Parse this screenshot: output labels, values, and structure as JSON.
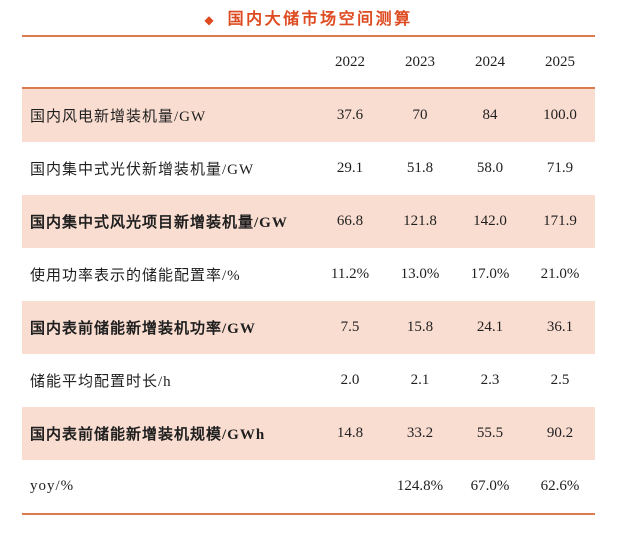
{
  "title": {
    "bullet": "◆",
    "text": "国内大储市场空间测算"
  },
  "colors": {
    "accent_red": "#de4b21",
    "rule_orange": "#dc7a50",
    "row_highlight_pink": "#faddd1",
    "text": "#1f1f1f"
  },
  "chart_data": {
    "type": "table",
    "title": "国内大储市场空间测算",
    "columns": [
      "2022",
      "2023",
      "2024",
      "2025"
    ],
    "rows": [
      {
        "label": "国内风电新增装机量/GW",
        "values": [
          "37.6",
          "70",
          "84",
          "100.0"
        ]
      },
      {
        "label": "国内集中式光伏新增装机量/GW",
        "values": [
          "29.1",
          "51.8",
          "58.0",
          "71.9"
        ]
      },
      {
        "label": "国内集中式风光项目新增装机量/GW",
        "values": [
          "66.8",
          "121.8",
          "142.0",
          "171.9"
        ]
      },
      {
        "label": "使用功率表示的储能配置率/%",
        "values": [
          "11.2%",
          "13.0%",
          "17.0%",
          "21.0%"
        ]
      },
      {
        "label": "国内表前储能新增装机功率/GW",
        "values": [
          "7.5",
          "15.8",
          "24.1",
          "36.1"
        ]
      },
      {
        "label": "储能平均配置时长/h",
        "values": [
          "2.0",
          "2.1",
          "2.3",
          "2.5"
        ]
      },
      {
        "label": "国内表前储能新增装机规模/GWh",
        "values": [
          "14.8",
          "33.2",
          "55.5",
          "90.2"
        ]
      },
      {
        "label": "yoy/%",
        "values": [
          "",
          "124.8%",
          "67.0%",
          "62.6%"
        ]
      }
    ]
  }
}
